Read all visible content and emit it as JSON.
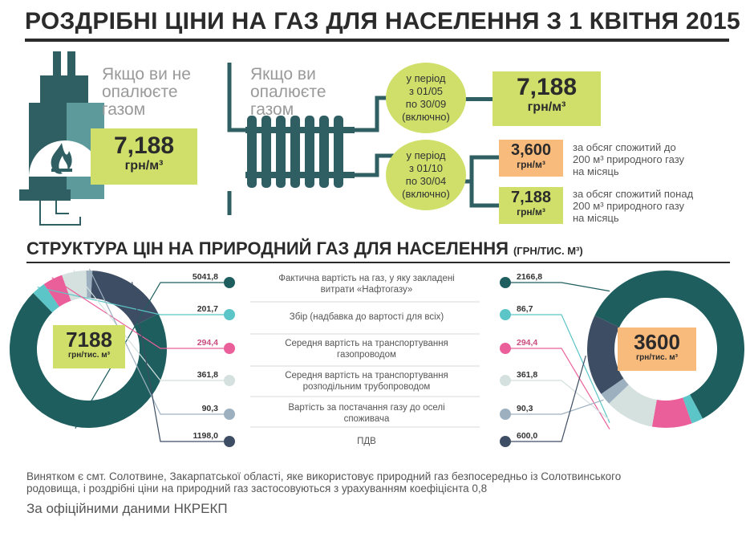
{
  "header": {
    "title": "РОЗДРІБНІ ЦІНИ НА ГАЗ ДЛЯ НАСЕЛЕННЯ З 1 КВІТНЯ 2015"
  },
  "no_heating": {
    "label_1": "Якщо ви не",
    "label_2": "опалюєте",
    "label_3": "газом",
    "price": "7,188",
    "unit": "грн/м³"
  },
  "heating": {
    "label_1": "Якщо ви",
    "label_2": "опалюєте",
    "label_3": "газом",
    "summer": {
      "period": [
        "у період",
        "з 01/05",
        "по 30/09",
        "(включно)"
      ],
      "price": "7,188",
      "unit": "грн/м³"
    },
    "winter": {
      "period": [
        "у період",
        "з 01/10",
        "по 30/04",
        "(включно)"
      ],
      "low": {
        "price": "3,600",
        "unit": "грн/м³",
        "note": [
          "за обсяг спожитий до",
          "200 м³ природного газу",
          "на місяць"
        ]
      },
      "high": {
        "price": "7,188",
        "unit": "грн/м³",
        "note": [
          "за обсяг спожитий понад",
          "200 м³ природного газу",
          "на місяць"
        ]
      }
    }
  },
  "structure": {
    "title": "СТРУКТУРА ЦІН НА ПРИРОДНИЙ ГАЗ ДЛЯ НАСЕЛЕННЯ",
    "title_unit": "(ГРН/ТИС. М³)"
  },
  "chart_data": [
    {
      "type": "pie",
      "center_value": "7188",
      "center_unit": "грн/тис. м³",
      "categories": [
        "Фактична вартість на газ, у яку закладені витрати «Нафтогазу»",
        "Збір (надбавка до вартості для всіх)",
        "Середня вартість на транспортування газопроводом",
        "Середня вартість на транспортування розподільним трубопроводом",
        "Вартість за постачання газу до оселі споживача",
        "ПДВ"
      ],
      "values": [
        5041.8,
        201.7,
        294.4,
        361.8,
        90.3,
        1198.0
      ],
      "value_labels": [
        "5041,8",
        "201,7",
        "294,4",
        "361,8",
        "90,3",
        "1198,0"
      ],
      "colors": [
        "#1f5e5f",
        "#5bc5c7",
        "#ea5f9a",
        "#d4e1de",
        "#9db0c0",
        "#3d4d63"
      ]
    },
    {
      "type": "pie",
      "center_value": "3600",
      "center_unit": "грн/тис. м³",
      "categories": [
        "Фактична вартість на газ, у яку закладені витрати «Нафтогазу»",
        "Збір (надбавка до вартості для всіх)",
        "Середня вартість на транспортування газопроводом",
        "Середня вартість на транспортування розподільним трубопроводом",
        "Вартість за постачання газу до оселі споживача",
        "ПДВ"
      ],
      "values": [
        2166.8,
        86.7,
        294.4,
        361.8,
        90.3,
        600.0
      ],
      "value_labels": [
        "2166,8",
        "86,7",
        "294,4",
        "361,8",
        "90,3",
        "600,0"
      ],
      "colors": [
        "#1f5e5f",
        "#5bc5c7",
        "#ea5f9a",
        "#d4e1de",
        "#9db0c0",
        "#3d4d63"
      ]
    }
  ],
  "labels": {
    "items": [
      [
        "Фактична вартість на газ, у яку закладені",
        "витрати «Нафтогазу»"
      ],
      [
        "Збір (надбавка до вартості для всіх)"
      ],
      [
        "Середня вартість на транспортування",
        "газопроводом"
      ],
      [
        "Середня вартість на транспортування",
        "розподільним трубопроводом"
      ],
      [
        "Вартість за постачання газу до оселі",
        "споживача"
      ],
      [
        "ПДВ"
      ]
    ]
  },
  "footer": {
    "line_1": "Винятком є смт. Солотвине, Закарпатської області, яке використовує природний газ безпосередньо із Солотвинського",
    "line_2": "родовища, і роздрібні ціни на природний газ застосовуються з урахуванням коефіцієнта 0,8",
    "source": "За офіційними даними НКРЕКП"
  },
  "icons": [
    "stove-icon",
    "flame-icon",
    "radiator-icon"
  ]
}
